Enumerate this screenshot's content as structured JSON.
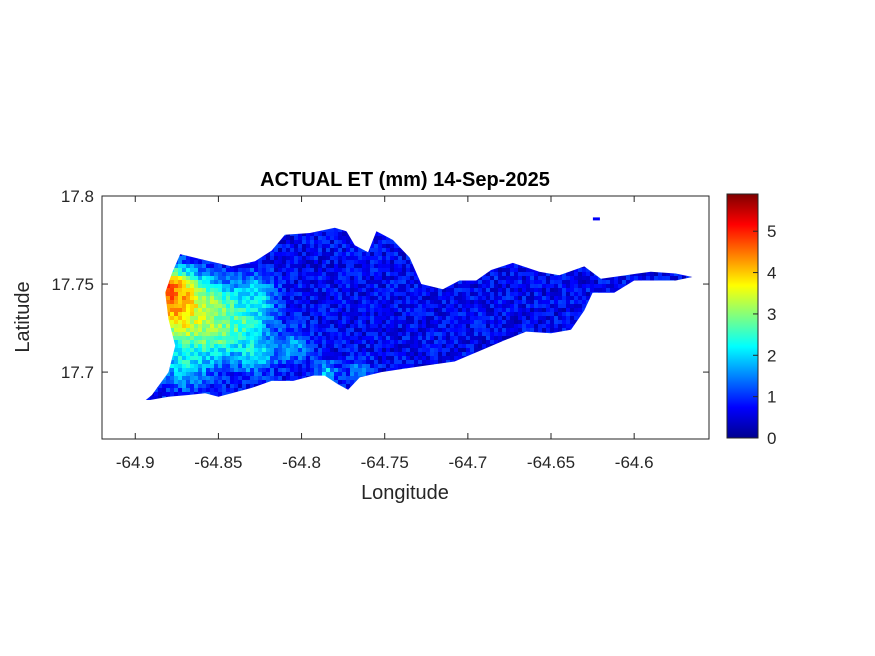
{
  "chart_data": {
    "type": "heatmap",
    "title": "ACTUAL ET (mm) 14-Sep-2025",
    "xlabel": "Longitude",
    "ylabel": "Latitude",
    "xlim": [
      -64.92,
      -64.555
    ],
    "ylim": [
      17.662,
      17.8
    ],
    "xticks": [
      -64.9,
      -64.85,
      -64.8,
      -64.75,
      -64.7,
      -64.65,
      -64.6
    ],
    "xtick_labels": [
      "-64.9",
      "-64.85",
      "-64.8",
      "-64.75",
      "-64.7",
      "-64.65",
      "-64.6"
    ],
    "yticks": [
      17.7,
      17.75,
      17.8
    ],
    "ytick_labels": [
      "17.7",
      "17.75",
      "17.8"
    ],
    "colorbar": {
      "colormap": "jet",
      "range": [
        0,
        5.9
      ],
      "ticks": [
        0,
        1,
        2,
        3,
        4,
        5
      ],
      "tick_labels": [
        "0",
        "1",
        "2",
        "3",
        "4",
        "5"
      ],
      "placement": "right"
    },
    "grid": false,
    "region_outline": [
      [
        -64.899,
        17.68
      ],
      [
        -64.89,
        17.687
      ],
      [
        -64.88,
        17.7
      ],
      [
        -64.876,
        17.715
      ],
      [
        -64.88,
        17.73
      ],
      [
        -64.882,
        17.745
      ],
      [
        -64.878,
        17.756
      ],
      [
        -64.873,
        17.767
      ],
      [
        -64.86,
        17.764
      ],
      [
        -64.842,
        17.76
      ],
      [
        -64.828,
        17.763
      ],
      [
        -64.818,
        17.769
      ],
      [
        -64.81,
        17.778
      ],
      [
        -64.795,
        17.779
      ],
      [
        -64.78,
        17.782
      ],
      [
        -64.773,
        17.78
      ],
      [
        -64.768,
        17.772
      ],
      [
        -64.76,
        17.768
      ],
      [
        -64.755,
        17.78
      ],
      [
        -64.745,
        17.775
      ],
      [
        -64.735,
        17.765
      ],
      [
        -64.728,
        17.75
      ],
      [
        -64.715,
        17.747
      ],
      [
        -64.705,
        17.752
      ],
      [
        -64.695,
        17.752
      ],
      [
        -64.686,
        17.758
      ],
      [
        -64.673,
        17.762
      ],
      [
        -64.657,
        17.757
      ],
      [
        -64.645,
        17.755
      ],
      [
        -64.63,
        17.76
      ],
      [
        -64.62,
        17.753
      ],
      [
        -64.605,
        17.755
      ],
      [
        -64.59,
        17.757
      ],
      [
        -64.575,
        17.756
      ],
      [
        -64.565,
        17.754
      ],
      [
        -64.575,
        17.752
      ],
      [
        -64.588,
        17.752
      ],
      [
        -64.6,
        17.752
      ],
      [
        -64.612,
        17.745
      ],
      [
        -64.625,
        17.745
      ],
      [
        -64.63,
        17.735
      ],
      [
        -64.638,
        17.724
      ],
      [
        -64.65,
        17.722
      ],
      [
        -64.665,
        17.723
      ],
      [
        -64.678,
        17.718
      ],
      [
        -64.693,
        17.712
      ],
      [
        -64.708,
        17.706
      ],
      [
        -64.723,
        17.704
      ],
      [
        -64.738,
        17.702
      ],
      [
        -64.752,
        17.7
      ],
      [
        -64.765,
        17.697
      ],
      [
        -64.772,
        17.69
      ],
      [
        -64.778,
        17.693
      ],
      [
        -64.786,
        17.698
      ],
      [
        -64.793,
        17.698
      ],
      [
        -64.805,
        17.695
      ],
      [
        -64.818,
        17.695
      ],
      [
        -64.83,
        17.691
      ],
      [
        -64.842,
        17.688
      ],
      [
        -64.85,
        17.686
      ],
      [
        -64.858,
        17.688
      ],
      [
        -64.868,
        17.687
      ],
      [
        -64.88,
        17.686
      ],
      [
        -64.892,
        17.684
      ]
    ],
    "islet": [
      -64.623,
      17.787
    ],
    "hotspots": [
      {
        "lon": -64.88,
        "lat": 17.745,
        "value": 5.2,
        "radius": 0.012
      },
      {
        "lon": -64.872,
        "lat": 17.735,
        "value": 4.8,
        "radius": 0.016
      },
      {
        "lon": -64.862,
        "lat": 17.73,
        "value": 3.9,
        "radius": 0.018
      },
      {
        "lon": -64.85,
        "lat": 17.728,
        "value": 3.2,
        "radius": 0.016
      },
      {
        "lon": -64.838,
        "lat": 17.73,
        "value": 2.8,
        "radius": 0.014
      },
      {
        "lon": -64.828,
        "lat": 17.742,
        "value": 2.2,
        "radius": 0.012
      },
      {
        "lon": -64.828,
        "lat": 17.712,
        "value": 2.3,
        "radius": 0.012
      },
      {
        "lon": -64.805,
        "lat": 17.715,
        "value": 1.7,
        "radius": 0.01
      },
      {
        "lon": -64.87,
        "lat": 17.705,
        "value": 2.2,
        "radius": 0.014
      },
      {
        "lon": -64.785,
        "lat": 17.7,
        "value": 2.0,
        "radius": 0.006
      },
      {
        "lon": -64.765,
        "lat": 17.7,
        "value": 1.5,
        "radius": 0.007
      }
    ],
    "background_value": 0.7
  }
}
